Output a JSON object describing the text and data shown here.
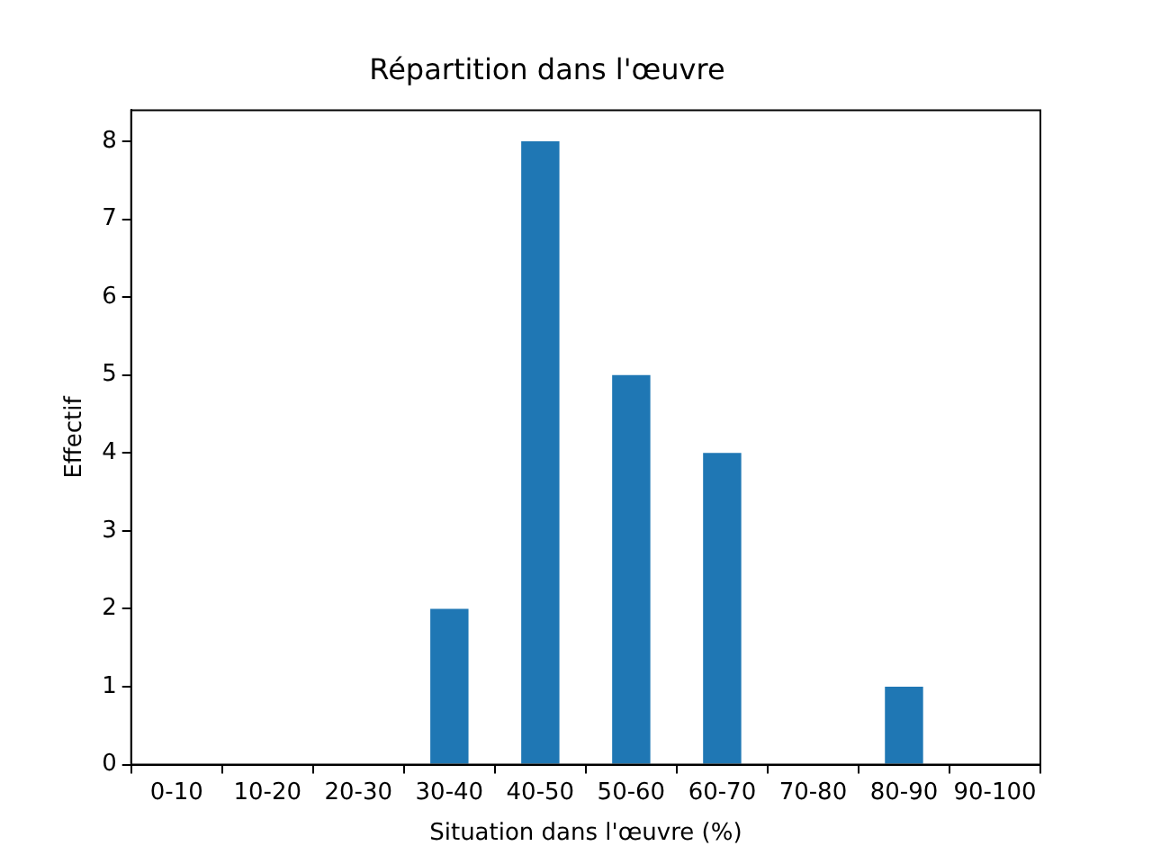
{
  "chart_data": {
    "type": "bar",
    "title": "Répartition dans l'œuvre",
    "xlabel": "Situation dans l'œuvre (%)",
    "ylabel": "Effectif",
    "categories": [
      "0-10",
      "10-20",
      "20-30",
      "30-40",
      "40-50",
      "50-60",
      "60-70",
      "70-80",
      "80-90",
      "90-100"
    ],
    "values": [
      0,
      0,
      0,
      2,
      8,
      5,
      4,
      0,
      1,
      0
    ],
    "color": "#1f77b4",
    "ylim": [
      0,
      8.4
    ],
    "yticks": [
      0,
      1,
      2,
      3,
      4,
      5,
      6,
      7,
      8
    ],
    "grid": false,
    "legend": false
  }
}
